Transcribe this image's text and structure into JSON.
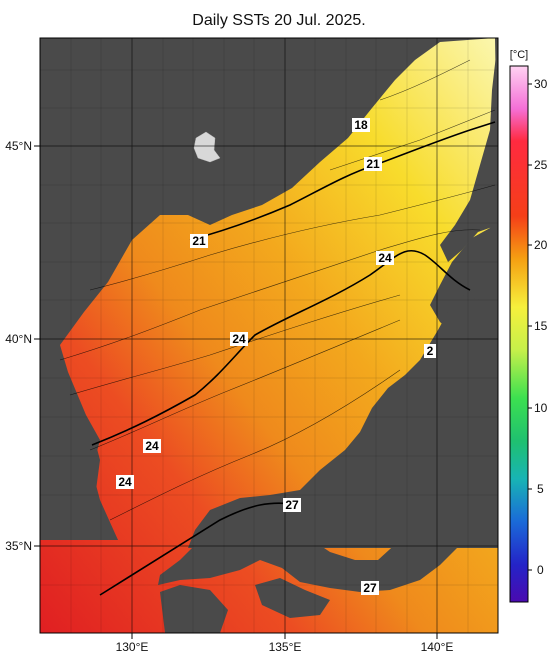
{
  "title": "Daily SSTs 20 Jul. 2025.",
  "colorbar": {
    "unit": "[°C]",
    "ticks": [
      "30",
      "25",
      "20",
      "15",
      "10",
      "5",
      "0"
    ]
  },
  "axes": {
    "lat_labels": [
      "45°N",
      "40°N",
      "35°N"
    ],
    "lon_labels": [
      "130°E",
      "135°E",
      "140°E"
    ]
  },
  "contour_labels": [
    {
      "id": "18",
      "text": "18"
    },
    {
      "id": "21a",
      "text": "21"
    },
    {
      "id": "21b",
      "text": "21"
    },
    {
      "id": "24a",
      "text": "24"
    },
    {
      "id": "24b",
      "text": "24"
    },
    {
      "id": "2",
      "text": "2"
    },
    {
      "id": "24c",
      "text": "24"
    },
    {
      "id": "24d",
      "text": "24"
    },
    {
      "id": "27a",
      "text": "27"
    },
    {
      "id": "27b",
      "text": "27"
    }
  ],
  "colors": {
    "land": "#4a4a4a",
    "warm_red": "#e8242a",
    "orange": "#f08c1a",
    "yellow": "#f6e53a"
  }
}
